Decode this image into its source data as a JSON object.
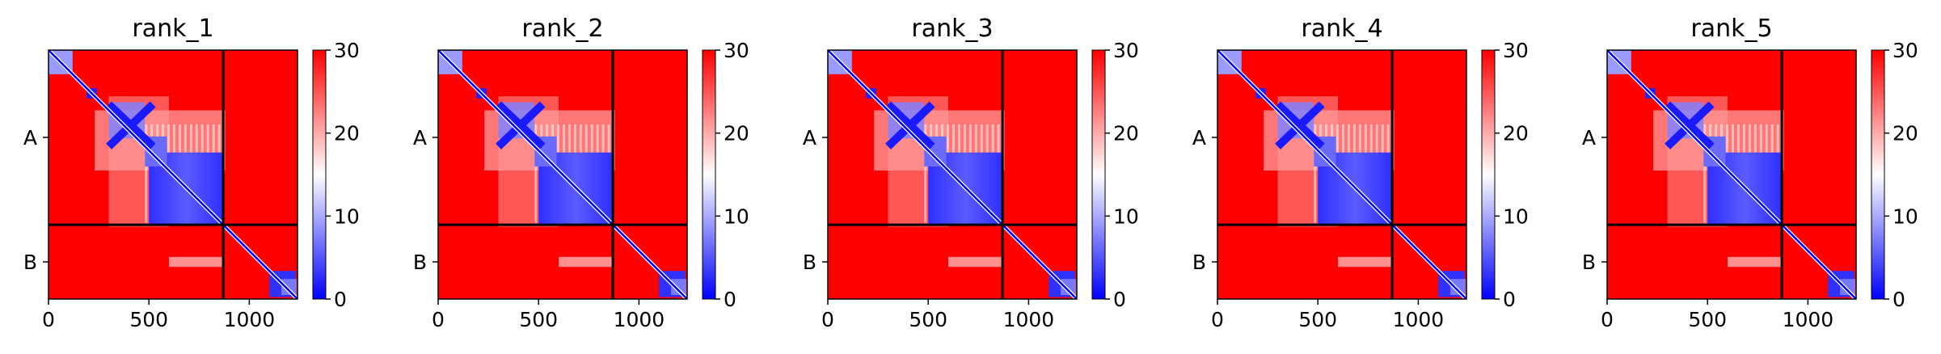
{
  "chart_data": [
    {
      "type": "heatmap",
      "title": "rank_1",
      "x_ticks": [
        "0",
        "500",
        "1000"
      ],
      "x_tick_values": [
        0,
        500,
        1000
      ],
      "xlim": [
        0,
        1240
      ],
      "y_ticks": [
        "A",
        "B"
      ],
      "chain_lengths": {
        "A": 870,
        "B": 370
      },
      "colorbar": {
        "min": 0,
        "max": 30,
        "ticks": [
          "0",
          "10",
          "20",
          "30"
        ],
        "tick_values": [
          0,
          10,
          20,
          30
        ],
        "colormap": [
          "#0000ff",
          "#ffffff",
          "#ff0000"
        ]
      }
    },
    {
      "type": "heatmap",
      "title": "rank_2",
      "x_ticks": [
        "0",
        "500",
        "1000"
      ],
      "x_tick_values": [
        0,
        500,
        1000
      ],
      "xlim": [
        0,
        1240
      ],
      "y_ticks": [
        "A",
        "B"
      ],
      "chain_lengths": {
        "A": 870,
        "B": 370
      },
      "colorbar": {
        "min": 0,
        "max": 30,
        "ticks": [
          "0",
          "10",
          "20",
          "30"
        ],
        "tick_values": [
          0,
          10,
          20,
          30
        ],
        "colormap": [
          "#0000ff",
          "#ffffff",
          "#ff0000"
        ]
      }
    },
    {
      "type": "heatmap",
      "title": "rank_3",
      "x_ticks": [
        "0",
        "500",
        "1000"
      ],
      "x_tick_values": [
        0,
        500,
        1000
      ],
      "xlim": [
        0,
        1240
      ],
      "y_ticks": [
        "A",
        "B"
      ],
      "chain_lengths": {
        "A": 870,
        "B": 370
      },
      "colorbar": {
        "min": 0,
        "max": 30,
        "ticks": [
          "0",
          "10",
          "20",
          "30"
        ],
        "tick_values": [
          0,
          10,
          20,
          30
        ],
        "colormap": [
          "#0000ff",
          "#ffffff",
          "#ff0000"
        ]
      }
    },
    {
      "type": "heatmap",
      "title": "rank_4",
      "x_ticks": [
        "0",
        "500",
        "1000"
      ],
      "x_tick_values": [
        0,
        500,
        1000
      ],
      "xlim": [
        0,
        1240
      ],
      "y_ticks": [
        "A",
        "B"
      ],
      "chain_lengths": {
        "A": 870,
        "B": 370
      },
      "colorbar": {
        "min": 0,
        "max": 30,
        "ticks": [
          "0",
          "10",
          "20",
          "30"
        ],
        "tick_values": [
          0,
          10,
          20,
          30
        ],
        "colormap": [
          "#0000ff",
          "#ffffff",
          "#ff0000"
        ]
      }
    },
    {
      "type": "heatmap",
      "title": "rank_5",
      "x_ticks": [
        "0",
        "500",
        "1000"
      ],
      "x_tick_values": [
        0,
        500,
        1000
      ],
      "xlim": [
        0,
        1240
      ],
      "y_ticks": [
        "A",
        "B"
      ],
      "chain_lengths": {
        "A": 870,
        "B": 370
      },
      "colorbar": {
        "min": 0,
        "max": 30,
        "ticks": [
          "0",
          "10",
          "20",
          "30"
        ],
        "tick_values": [
          0,
          10,
          20,
          30
        ],
        "colormap": [
          "#0000ff",
          "#ffffff",
          "#ff0000"
        ]
      }
    }
  ]
}
